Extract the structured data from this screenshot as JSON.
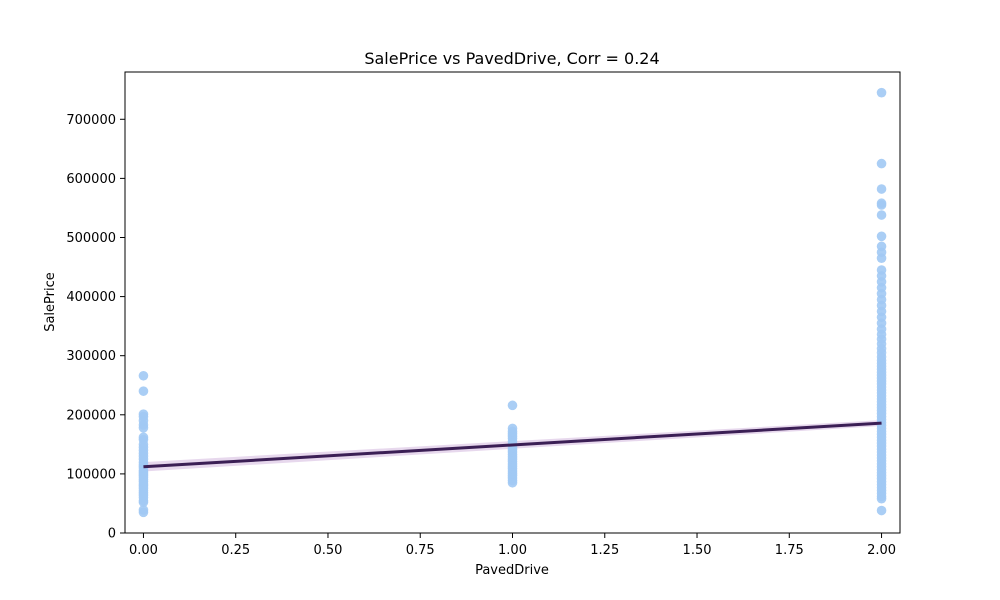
{
  "chart_data": {
    "type": "scatter",
    "title": "SalePrice vs PavedDrive, Corr = 0.24",
    "xlabel": "PavedDrive",
    "ylabel": "SalePrice",
    "xlim": [
      -0.05,
      2.05
    ],
    "ylim": [
      0,
      780000
    ],
    "xticks": [
      "0.00",
      "0.25",
      "0.50",
      "0.75",
      "1.00",
      "1.25",
      "1.50",
      "1.75",
      "2.00"
    ],
    "xtick_values": [
      0,
      0.25,
      0.5,
      0.75,
      1.0,
      1.25,
      1.5,
      1.75,
      2.0
    ],
    "yticks": [
      "0",
      "100000",
      "200000",
      "300000",
      "400000",
      "500000",
      "600000",
      "700000"
    ],
    "ytick_values": [
      0,
      100000,
      200000,
      300000,
      400000,
      500000,
      600000,
      700000
    ],
    "grid": false,
    "point_color": "#a1c9f4",
    "line_color": "#3b1f55",
    "band_color": "#c9a9d6",
    "series": [
      {
        "x": 0,
        "y": [
          35000,
          39000,
          52000,
          55000,
          60000,
          64000,
          68000,
          72000,
          76000,
          80000,
          83000,
          87000,
          90000,
          94000,
          97000,
          100000,
          103000,
          106000,
          110000,
          113000,
          116000,
          120000,
          125000,
          130000,
          135000,
          140000,
          145000,
          150000,
          158000,
          162000,
          178000,
          183000,
          190000,
          197000,
          201000,
          240000,
          266000
        ]
      },
      {
        "x": 1,
        "y": [
          85000,
          89000,
          93000,
          97000,
          101000,
          105000,
          109000,
          113000,
          117000,
          121000,
          125000,
          129000,
          133000,
          137000,
          141000,
          145000,
          150000,
          155000,
          160000,
          164000,
          168000,
          172000,
          177000,
          216000
        ]
      },
      {
        "x": 2,
        "y": [
          38000,
          58000,
          62000,
          67000,
          72000,
          77000,
          82000,
          87000,
          92000,
          97000,
          102000,
          107000,
          112000,
          117000,
          122000,
          127000,
          132000,
          137000,
          142000,
          147000,
          152000,
          157000,
          162000,
          167000,
          172000,
          177000,
          182000,
          187000,
          192000,
          197000,
          202000,
          207000,
          212000,
          217000,
          222000,
          227000,
          232000,
          237000,
          242000,
          247000,
          252000,
          257000,
          262000,
          267000,
          272000,
          277000,
          282000,
          287000,
          292000,
          298000,
          305000,
          312000,
          320000,
          328000,
          336000,
          345000,
          355000,
          365000,
          375000,
          385000,
          395000,
          405000,
          415000,
          425000,
          435000,
          445000,
          465000,
          475000,
          485000,
          502000,
          538000,
          555000,
          558000,
          582000,
          625000,
          745000
        ]
      }
    ],
    "regression": {
      "x": [
        0,
        2
      ],
      "y": [
        112000,
        186000
      ],
      "band_halfwidth": [
        8000,
        5000
      ]
    }
  }
}
